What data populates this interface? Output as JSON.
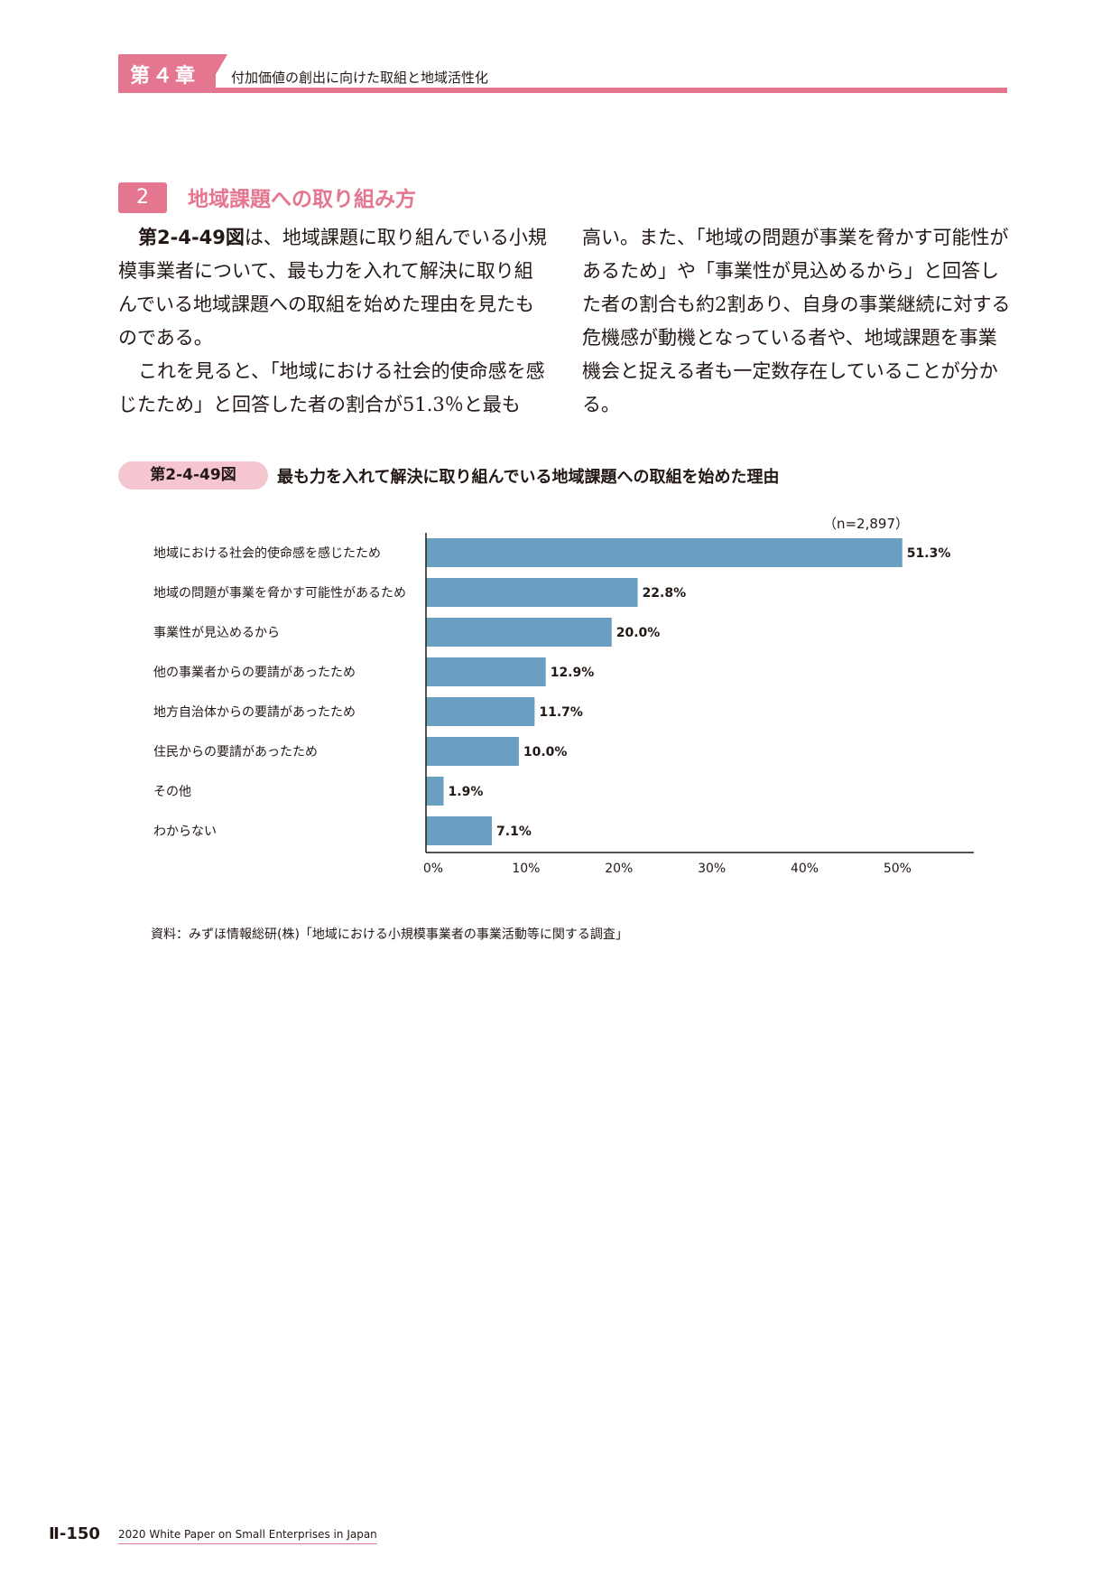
{
  "header": {
    "chapter_label": "第４章",
    "chapter_title": "付加価値の創出に向けた取組と地域活性化"
  },
  "section": {
    "number": "2",
    "title": "地域課題への取り組み方"
  },
  "body": {
    "left": {
      "p1_ref": "第2-4-49図",
      "p1_rest": "は、地域課題に取り組んでいる小規模事業者について、最も力を入れて解決に取り組んでいる地域課題への取組を始めた理由を見たものである。",
      "p2": "これを見ると、「地域における社会的使命感を感じたため」と回答した者の割合が51.3％と最も"
    },
    "right": {
      "p1": "高い。また、「地域の問題が事業を脅かす可能性があるため」や「事業性が見込めるから」と回答した者の割合も約2割あり、自身の事業継続に対する危機感が動機となっている者や、地域課題を事業機会と捉える者も一定数存在していることが分かる。"
    }
  },
  "figure": {
    "badge": "第2-4-49図",
    "title": "最も力を入れて解決に取り組んでいる地域課題への取組を始めた理由",
    "n_label": "（n=2,897）",
    "source": "資料：みずほ情報総研(株)「地域における小規模事業者の事業活動等に関する調査」"
  },
  "chart_data": {
    "type": "bar",
    "orientation": "horizontal",
    "title": "最も力を入れて解決に取り組んでいる地域課題への取組を始めた理由",
    "categories": [
      "地域における社会的使命感を感じたため",
      "地域の問題が事業を脅かす可能性があるため",
      "事業性が見込めるから",
      "他の事業者からの要請があったため",
      "地方自治体からの要請があったため",
      "住民からの要請があったため",
      "その他",
      "わからない"
    ],
    "values": [
      51.3,
      22.8,
      20.0,
      12.9,
      11.7,
      10.0,
      1.9,
      7.1
    ],
    "value_labels": [
      "51.3%",
      "22.8%",
      "20.0%",
      "12.9%",
      "11.7%",
      "10.0%",
      "1.9%",
      "7.1%"
    ],
    "xticks": [
      0,
      10,
      20,
      30,
      40,
      50
    ],
    "xtick_labels": [
      "0%",
      "10%",
      "20%",
      "30%",
      "40%",
      "50%"
    ],
    "xlim": [
      0,
      59
    ],
    "bar_color": "#6a9fc2",
    "grid": false
  },
  "footer": {
    "page_number": "Ⅱ-150",
    "publication": "2020 White Paper on Small Enterprises in Japan"
  },
  "colors": {
    "accent": "#e5768f",
    "badge_bg": "#f5c6d0",
    "bar": "#6a9fc2"
  }
}
